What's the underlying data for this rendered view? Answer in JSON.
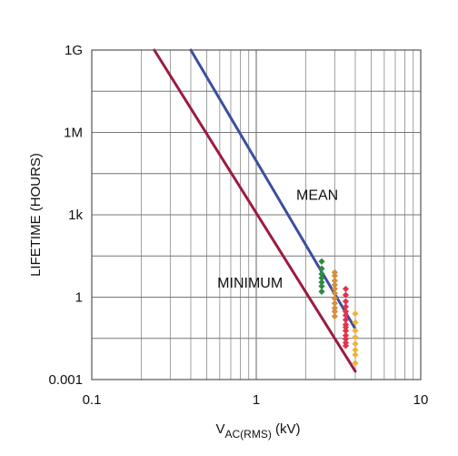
{
  "chart_data": {
    "type": "line",
    "xscale": "log",
    "yscale": "log",
    "xlim": [
      0.1,
      10
    ],
    "ylim": [
      0.001,
      1000000000
    ],
    "grid": true,
    "xlabel": {
      "main": "V",
      "sub": "AC(RMS)",
      "unit": " (kV)"
    },
    "ylabel": "LIFETIME (HOURS)",
    "xticks": [
      {
        "value": 0.1,
        "label": "0.1"
      },
      {
        "value": 1,
        "label": "1"
      },
      {
        "value": 10,
        "label": "10"
      }
    ],
    "yticks": [
      {
        "value": 0.001,
        "label": "0.001"
      },
      {
        "value": 1,
        "label": "1"
      },
      {
        "value": 1000,
        "label": "1k"
      },
      {
        "value": 1000000,
        "label": "1M"
      },
      {
        "value": 1000000000,
        "label": "1G"
      }
    ],
    "series": [
      {
        "name": "MEAN",
        "color": "#3c4fa0",
        "x": [
          0.4,
          4.0
        ],
        "y": [
          1000000000,
          0.07
        ]
      },
      {
        "name": "MINIMUM",
        "color": "#9b1b3f",
        "x": [
          0.24,
          4.0
        ],
        "y": [
          1000000000,
          0.002
        ]
      }
    ],
    "annotations": [
      {
        "text": "MEAN",
        "x": 1.75,
        "y": 3500
      },
      {
        "text": "MINIMUM",
        "x": 0.58,
        "y": 2.2
      }
    ],
    "scatter_groups": [
      {
        "x": 2.5,
        "color": "#2e8b3e",
        "y": [
          20,
          11,
          7,
          5,
          3.5,
          2.5,
          1.6
        ]
      },
      {
        "x": 3.0,
        "color": "#d39042",
        "y": [
          8,
          6,
          4,
          2.8,
          2,
          1.4,
          0.9,
          0.6,
          0.4,
          0.3,
          0.2
        ]
      },
      {
        "x": 3.5,
        "color": "#e2334b",
        "y": [
          2,
          1.2,
          0.7,
          0.45,
          0.3,
          0.22,
          0.15,
          0.1,
          0.08,
          0.06,
          0.04,
          0.03,
          0.022,
          0.017
        ]
      },
      {
        "x": 4.0,
        "color": "#ecb53a",
        "y": [
          0.25,
          0.12,
          0.06,
          0.035,
          0.02,
          0.012,
          0.008,
          0.004
        ]
      }
    ]
  }
}
